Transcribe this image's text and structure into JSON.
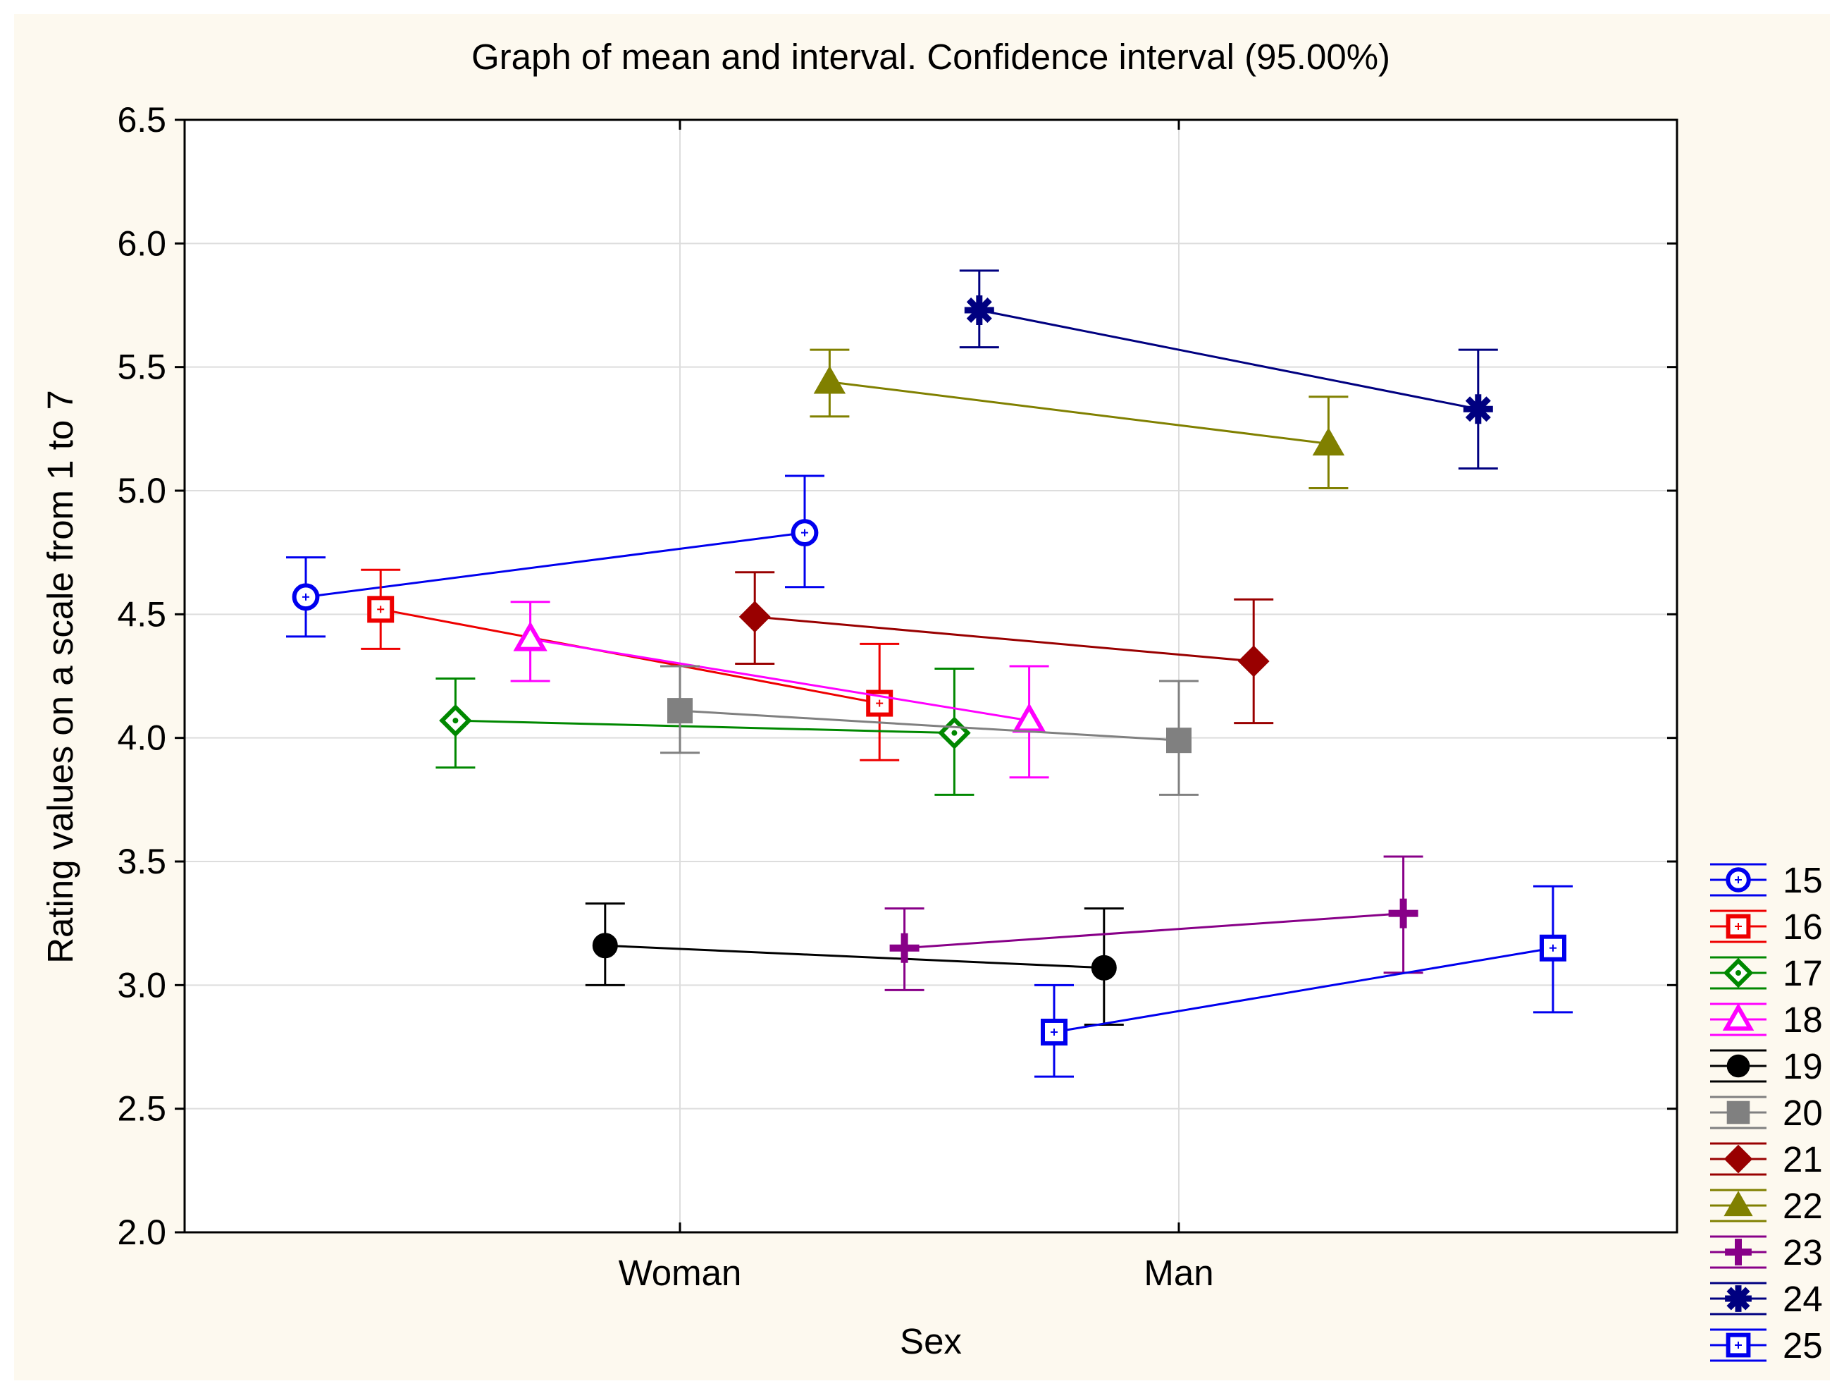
{
  "chart_data": {
    "type": "line",
    "title": "Graph of mean and interval. Confidence interval (95.00%)",
    "xlabel": "Sex",
    "ylabel": "Rating values on a scale from 1 to 7",
    "ylim": [
      2.0,
      6.5
    ],
    "yticks": [
      "2.0",
      "2.5",
      "3.0",
      "3.5",
      "4.0",
      "4.5",
      "5.0",
      "5.5",
      "6.0",
      "6.5"
    ],
    "categories": [
      "Woman",
      "Man"
    ],
    "grid": true,
    "legend_position": "right-bottom",
    "series": [
      {
        "name": "15",
        "color": "#0000ee",
        "marker": "circle-open",
        "points": [
          {
            "offset": -0.75,
            "mean": 4.57,
            "lo": 4.41,
            "hi": 4.73
          },
          {
            "offset": 0.25,
            "mean": 4.83,
            "lo": 4.61,
            "hi": 5.06
          }
        ]
      },
      {
        "name": "16",
        "color": "#ee0000",
        "marker": "square-open",
        "points": [
          {
            "offset": -0.6,
            "mean": 4.52,
            "lo": 4.36,
            "hi": 4.68
          },
          {
            "offset": 0.4,
            "mean": 4.14,
            "lo": 3.91,
            "hi": 4.38
          }
        ]
      },
      {
        "name": "17",
        "color": "#008800",
        "marker": "diamond-open",
        "points": [
          {
            "offset": -0.45,
            "mean": 4.07,
            "lo": 3.88,
            "hi": 4.24
          },
          {
            "offset": 0.55,
            "mean": 4.02,
            "lo": 3.77,
            "hi": 4.28
          }
        ]
      },
      {
        "name": "18",
        "color": "#ff00ff",
        "marker": "triangle-open",
        "points": [
          {
            "offset": -0.3,
            "mean": 4.4,
            "lo": 4.23,
            "hi": 4.55
          },
          {
            "offset": 0.7,
            "mean": 4.07,
            "lo": 3.84,
            "hi": 4.29
          }
        ]
      },
      {
        "name": "19",
        "color": "#000000",
        "marker": "circle-filled",
        "points": [
          {
            "offset": -0.15,
            "mean": 3.16,
            "lo": 3.0,
            "hi": 3.33
          },
          {
            "offset": 0.85,
            "mean": 3.07,
            "lo": 2.84,
            "hi": 3.31
          }
        ]
      },
      {
        "name": "20",
        "color": "#808080",
        "marker": "square-filled",
        "points": [
          {
            "offset": 0.0,
            "mean": 4.11,
            "lo": 3.94,
            "hi": 4.29
          },
          {
            "offset": 1.0,
            "mean": 3.99,
            "lo": 3.77,
            "hi": 4.23
          }
        ]
      },
      {
        "name": "21",
        "color": "#990000",
        "marker": "diamond-filled",
        "points": [
          {
            "offset": 0.15,
            "mean": 4.49,
            "lo": 4.3,
            "hi": 4.67
          },
          {
            "offset": 1.15,
            "mean": 4.31,
            "lo": 4.06,
            "hi": 4.56
          }
        ]
      },
      {
        "name": "22",
        "color": "#808000",
        "marker": "triangle-filled",
        "points": [
          {
            "offset": 0.3,
            "mean": 5.44,
            "lo": 5.3,
            "hi": 5.57
          },
          {
            "offset": 1.3,
            "mean": 5.19,
            "lo": 5.01,
            "hi": 5.38
          }
        ]
      },
      {
        "name": "23",
        "color": "#880088",
        "marker": "plus",
        "points": [
          {
            "offset": 0.45,
            "mean": 3.15,
            "lo": 2.98,
            "hi": 3.31
          },
          {
            "offset": 1.45,
            "mean": 3.29,
            "lo": 3.05,
            "hi": 3.52
          }
        ]
      },
      {
        "name": "24",
        "color": "#000080",
        "marker": "asterisk",
        "points": [
          {
            "offset": 0.6,
            "mean": 5.73,
            "lo": 5.58,
            "hi": 5.89
          },
          {
            "offset": 1.6,
            "mean": 5.33,
            "lo": 5.09,
            "hi": 5.57
          }
        ]
      },
      {
        "name": "25",
        "color": "#0000ee",
        "marker": "square-dotted",
        "points": [
          {
            "offset": 0.75,
            "mean": 2.81,
            "lo": 2.63,
            "hi": 3.0
          },
          {
            "offset": 1.75,
            "mean": 3.15,
            "lo": 2.89,
            "hi": 3.4
          }
        ]
      }
    ]
  }
}
